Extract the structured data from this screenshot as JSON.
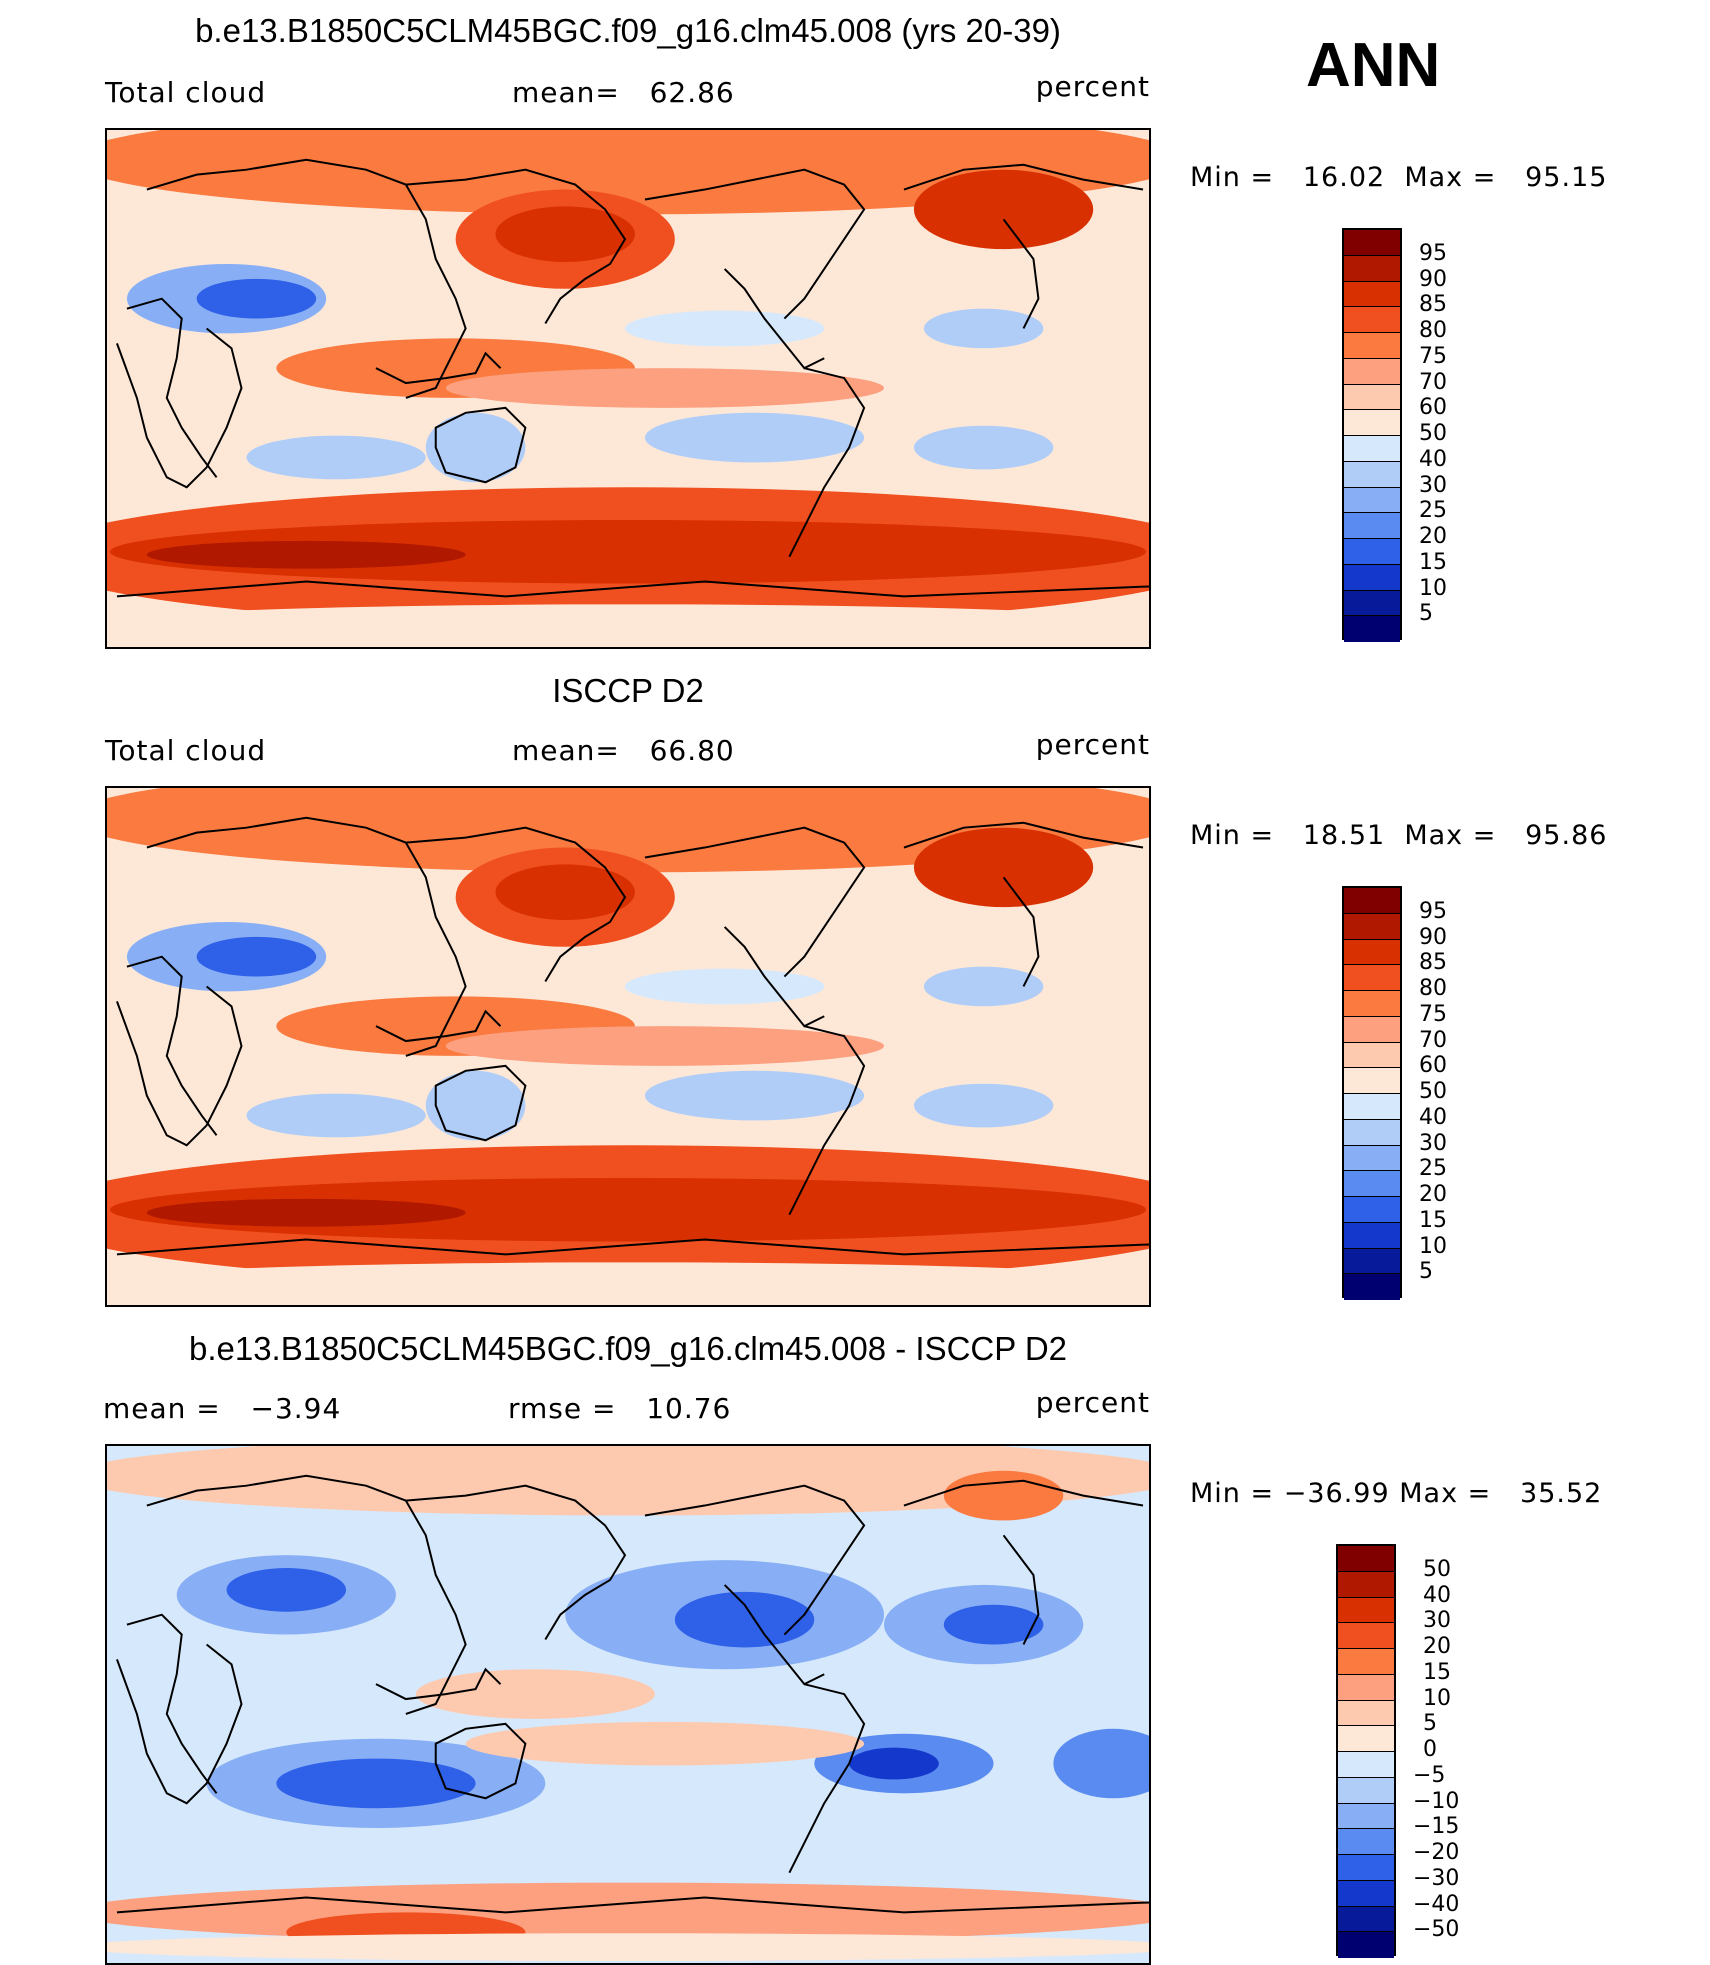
{
  "season": "ANN",
  "panels": [
    {
      "title": "b.e13.B1850C5CLM45BGC.f09_g16.clm45.008 (yrs 20-39)",
      "left_label": "Total cloud",
      "mid_label": "mean=",
      "mid_value": "62.86",
      "units": "percent",
      "min_label": "Min =",
      "min_value": "16.02",
      "max_label": "Max =",
      "max_value": "95.15",
      "scale": "abs",
      "mean_level": 62.86,
      "colorbar_labels": [
        "95",
        "90",
        "85",
        "80",
        "75",
        "70",
        "60",
        "50",
        "40",
        "30",
        "25",
        "20",
        "15",
        "10",
        "5"
      ]
    },
    {
      "title": "ISCCP D2",
      "left_label": "Total cloud",
      "mid_label": "mean=",
      "mid_value": "66.80",
      "units": "percent",
      "min_label": "Min =",
      "min_value": "18.51",
      "max_label": "Max =",
      "max_value": "95.86",
      "scale": "abs",
      "mean_level": 66.8,
      "colorbar_labels": [
        "95",
        "90",
        "85",
        "80",
        "75",
        "70",
        "60",
        "50",
        "40",
        "30",
        "25",
        "20",
        "15",
        "10",
        "5"
      ]
    },
    {
      "title": "b.e13.B1850C5CLM45BGC.f09_g16.clm45.008 - ISCCP D2",
      "left_label": "mean =",
      "left_value": "−3.94",
      "mid_label": "rmse =",
      "mid_value": "10.76",
      "units": "percent",
      "min_label": "Min =",
      "min_value": "−36.99",
      "max_label": "Max =",
      "max_value": "35.52",
      "scale": "diff",
      "mean_level": -3.94,
      "colorbar_labels": [
        "50",
        "40",
        "30",
        "20",
        "15",
        "10",
        "5",
        "0",
        "−5",
        "−10",
        "−15",
        "−20",
        "−30",
        "−40",
        "−50"
      ]
    }
  ],
  "colors": {
    "abs": [
      "#800000",
      "#b01800",
      "#d83000",
      "#f05020",
      "#fa7a40",
      "#fca080",
      "#fdcab0",
      "#fde8d8",
      "#d6e8fb",
      "#b0cdf8",
      "#88aff5",
      "#5a8bf0",
      "#2f60e8",
      "#1438cc",
      "#061a9a",
      "#000070"
    ],
    "diff": [
      "#800000",
      "#b01800",
      "#d83000",
      "#f05020",
      "#fa7a40",
      "#fca080",
      "#fdcab0",
      "#fde8d8",
      "#d6e8fb",
      "#b0cdf8",
      "#88aff5",
      "#5a8bf0",
      "#2f60e8",
      "#1438cc",
      "#061a9a",
      "#000070"
    ]
  }
}
